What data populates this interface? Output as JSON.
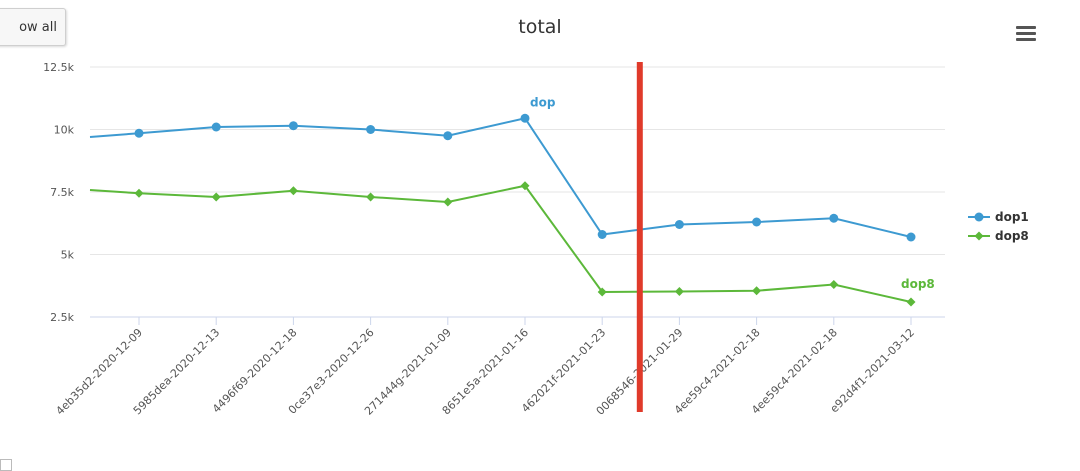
{
  "toolbar": {
    "show_all_label": "ow all"
  },
  "chart_data": {
    "type": "line",
    "title": "total",
    "categories": [
      "4eb35d2-2020-12-09",
      "5985dea-2020-12-13",
      "4496f69-2020-12-18",
      "0ce37e3-2020-12-26",
      "271444g-2021-01-09",
      "8651e5a-2021-01-16",
      "462021f-2021-01-23",
      "0068546-2021-01-29",
      "4ee59c4-2021-02-18",
      "4ee59c4-2021-02-18",
      "e92d4f1-2021-03-12"
    ],
    "series": [
      {
        "name": "dop1",
        "color": "#3d9ad1",
        "marker": "circle",
        "end_label": "dop",
        "values": [
          9850,
          10100,
          10150,
          10000,
          9750,
          10450,
          5800,
          6200,
          6300,
          6450,
          5700
        ]
      },
      {
        "name": "dop8",
        "color": "#5cb83a",
        "marker": "diamond",
        "end_label": "dop8",
        "values": [
          7450,
          7300,
          7550,
          7300,
          7100,
          7750,
          3500,
          3520,
          3550,
          3800,
          3100
        ]
      }
    ],
    "y_ticks": [
      "2.5k",
      "5k",
      "7.5k",
      "10k",
      "12.5k"
    ],
    "y_tick_values": [
      2500,
      5000,
      7500,
      10000,
      12500
    ],
    "ylim": [
      2500,
      12500
    ],
    "leading_values": {
      "dop1": 9700,
      "dop8": 7580
    },
    "marker_line": {
      "between": [
        6,
        7
      ],
      "color": "#e03a2a"
    },
    "grid": true,
    "legend": {
      "position": "right"
    }
  }
}
